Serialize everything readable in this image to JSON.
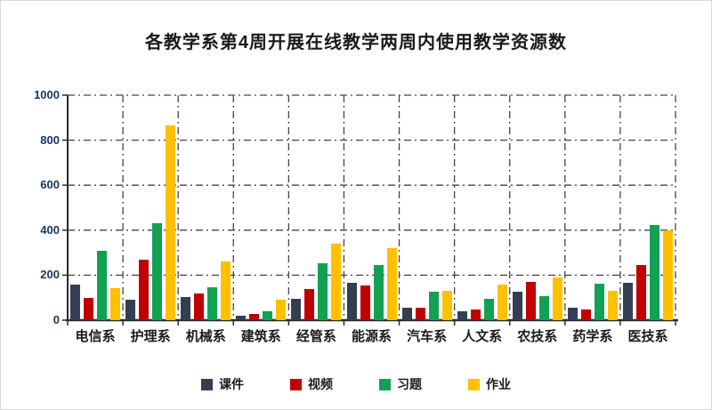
{
  "chart_data": {
    "type": "bar",
    "title": "各教学系第4周开展在线教学两周内使用教学资源数",
    "categories": [
      "电信系",
      "护理系",
      "机械系",
      "建筑系",
      "经管系",
      "能源系",
      "汽车系",
      "人文系",
      "农技系",
      "药学系",
      "医技系"
    ],
    "series": [
      {
        "name": "课件",
        "color": "#333F50",
        "values": [
          160,
          90,
          104,
          18,
          96,
          166,
          57,
          40,
          128,
          57,
          166
        ]
      },
      {
        "name": "视频",
        "color": "#C00000",
        "values": [
          100,
          268,
          117,
          27,
          137,
          156,
          57,
          47,
          170,
          48,
          246
        ]
      },
      {
        "name": "习题",
        "color": "#12A152",
        "values": [
          310,
          432,
          148,
          38,
          254,
          245,
          127,
          94,
          107,
          164,
          422
        ]
      },
      {
        "name": "作业",
        "color": "#FFC000",
        "values": [
          144,
          866,
          262,
          92,
          340,
          320,
          130,
          158,
          188,
          129,
          400
        ]
      }
    ],
    "xlabel": "",
    "ylabel": "",
    "ylim": [
      0,
      1000
    ],
    "yticks": [
      0,
      200,
      400,
      600,
      800,
      1000
    ],
    "grid": "dash-dot horizontal and vertical",
    "legend_position": "bottom",
    "axis_color": "#2b2b2b",
    "grid_color": "#444444",
    "ytick_label_color": "#17365d"
  }
}
